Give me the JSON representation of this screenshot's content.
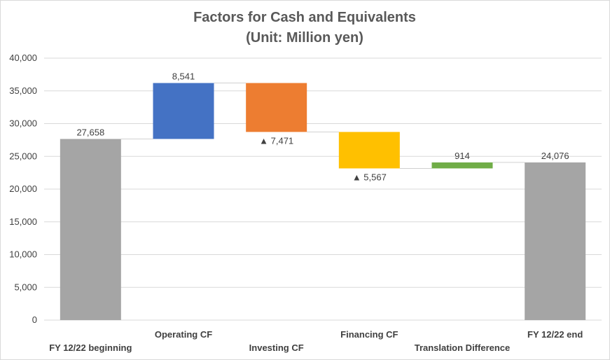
{
  "chart_data": {
    "type": "bar",
    "subtype": "waterfall",
    "title": "Factors for Cash and Equivalents",
    "subtitle": "(Unit: Million yen)",
    "categories": [
      "FY 12/22 beginning",
      "Operating CF",
      "Investing CF",
      "Financing CF",
      "Translation Difference",
      "FY 12/22 end"
    ],
    "values": [
      27658,
      8541,
      -7471,
      -5567,
      914,
      24076
    ],
    "bar_kinds": [
      "total",
      "delta",
      "delta",
      "delta",
      "delta",
      "total"
    ],
    "data_labels": [
      "27,658",
      "8,541",
      "▲ 7,471",
      "▲ 5,567",
      "914",
      "24,076"
    ],
    "colors": [
      "#a5a5a5",
      "#4472c4",
      "#ed7d31",
      "#ffc000",
      "#70ad47",
      "#a5a5a5"
    ],
    "ylim": [
      0,
      40000
    ],
    "yticks": [
      "0",
      "5,000",
      "10,000",
      "15,000",
      "20,000",
      "25,000",
      "30,000",
      "35,000",
      "40,000"
    ],
    "ytick_values": [
      0,
      5000,
      10000,
      15000,
      20000,
      25000,
      30000,
      35000,
      40000
    ],
    "grid": true,
    "legend": "none"
  }
}
